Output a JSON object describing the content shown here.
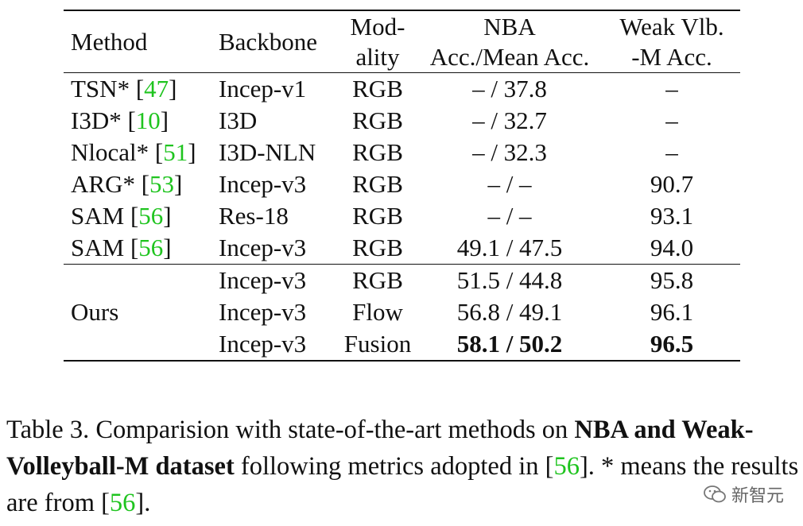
{
  "table": {
    "headers": {
      "method": "Method",
      "backbone": "Backbone",
      "modality_line1": "Mod-",
      "modality_line2": "ality",
      "nba_line1": "NBA",
      "nba_line2": "Acc./Mean Acc.",
      "weak_line1": "Weak Vlb.",
      "weak_line2": "-M Acc."
    },
    "rows": [
      {
        "method": "TSN*",
        "cite": "47",
        "backbone": "Incep-v1",
        "modality": "RGB",
        "nba": "– / 37.8",
        "weak": "–"
      },
      {
        "method": "I3D*",
        "cite": "10",
        "backbone": "I3D",
        "modality": "RGB",
        "nba": "– / 32.7",
        "weak": "–"
      },
      {
        "method": "Nlocal*",
        "cite": "51",
        "backbone": "I3D-NLN",
        "modality": "RGB",
        "nba": "– / 32.3",
        "weak": "–"
      },
      {
        "method": "ARG*",
        "cite": "53",
        "backbone": "Incep-v3",
        "modality": "RGB",
        "nba": "– / –",
        "weak": "90.7"
      },
      {
        "method": "SAM",
        "cite": "56",
        "backbone": "Res-18",
        "modality": "RGB",
        "nba": "– / –",
        "weak": "93.1"
      },
      {
        "method": "SAM",
        "cite": "56",
        "backbone": "Incep-v3",
        "modality": "RGB",
        "nba": "49.1 / 47.5",
        "weak": "94.0"
      }
    ],
    "ours": {
      "method": "Ours",
      "rows": [
        {
          "backbone": "Incep-v3",
          "modality": "RGB",
          "nba": "51.5 / 44.8",
          "weak": "95.8"
        },
        {
          "backbone": "Incep-v3",
          "modality": "Flow",
          "nba": "56.8 / 49.1",
          "weak": "96.1"
        },
        {
          "backbone": "Incep-v3",
          "modality": "Fusion",
          "nba": "58.1 / 50.2",
          "weak": "96.5"
        }
      ]
    }
  },
  "caption": {
    "label": "Table 3.",
    "part1": "Comparision with state-of-the-art methods on",
    "bold1": "NBA and Weak-Volleyball-M dataset",
    "part2": "following metrics adopted in [",
    "cite1": "56",
    "part3": "]. * means the results are from [",
    "cite2": "56",
    "part4": "]."
  },
  "watermark": {
    "text": "新智元",
    "icon": "wechat-icon"
  },
  "colors": {
    "citation": "#1fc41f",
    "text": "#111111"
  }
}
